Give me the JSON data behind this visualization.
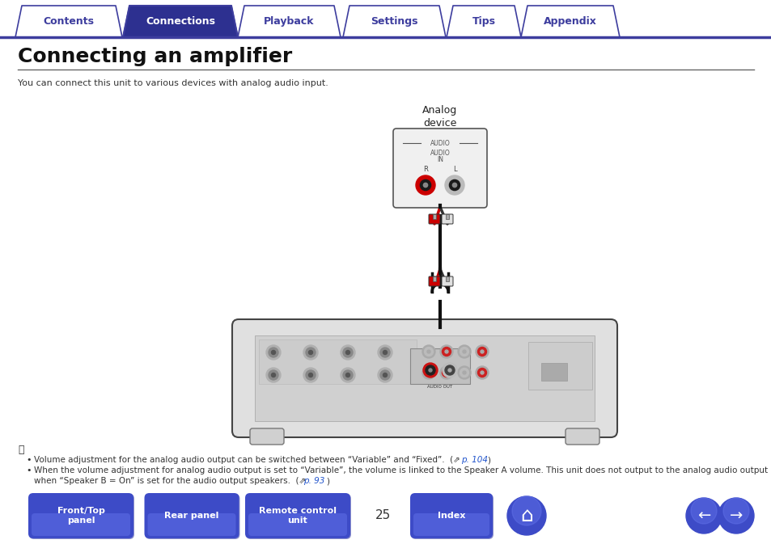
{
  "title": "Connecting an amplifier",
  "subtitle": "You can connect this unit to various devices with analog audio input.",
  "bg_color": "#ffffff",
  "tab_items": [
    "Contents",
    "Connections",
    "Playback",
    "Settings",
    "Tips",
    "Appendix"
  ],
  "tab_active": 1,
  "tab_color_active": "#2d3090",
  "tab_color_inactive": "#ffffff",
  "tab_border_color": "#3d3d9e",
  "tab_text_color_active": "#ffffff",
  "tab_text_color_inactive": "#3d3d9e",
  "bottom_button_color": "#3d4bc7",
  "bottom_button_text_color": "#ffffff",
  "page_number": "25",
  "analog_device_label": "Analog\ndevice",
  "note_line1": "Volume adjustment for the analog audio output can be switched between “Variable” and “Fixed”.  (⇗ p. 104)",
  "note_line2a": "When the volume adjustment for analog audio output is set to “Variable”, the volume is linked to the Speaker A volume. This unit does not output to the analog audio output",
  "note_line2b": "when “Speaker B = On” is set for the audio output speakers.  (⇗ p. 93)"
}
